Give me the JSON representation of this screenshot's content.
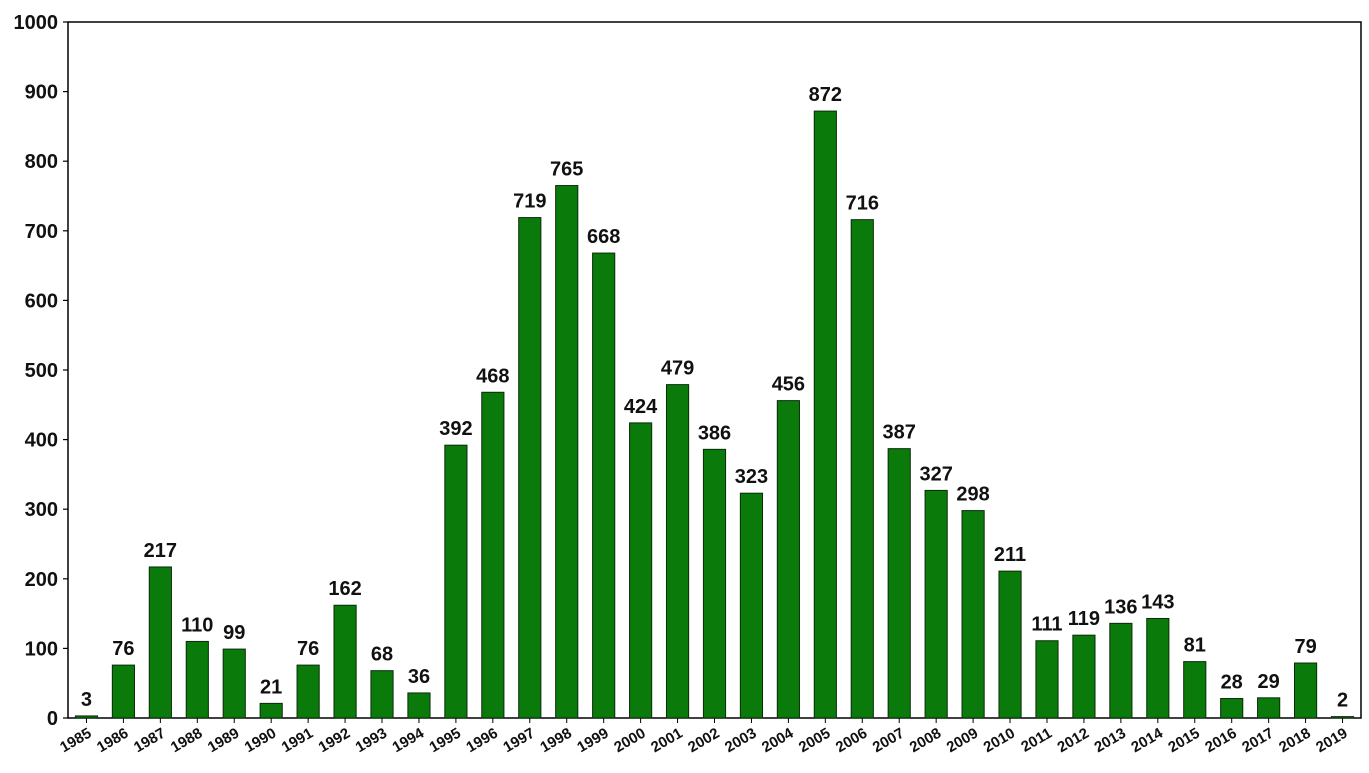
{
  "chart_data": {
    "type": "bar",
    "categories": [
      "1985",
      "1986",
      "1987",
      "1988",
      "1989",
      "1990",
      "1991",
      "1992",
      "1993",
      "1994",
      "1995",
      "1996",
      "1997",
      "1998",
      "1999",
      "2000",
      "2001",
      "2002",
      "2003",
      "2004",
      "2005",
      "2006",
      "2007",
      "2008",
      "2009",
      "2010",
      "2011",
      "2012",
      "2013",
      "2014",
      "2015",
      "2016",
      "2017",
      "2018",
      "2019"
    ],
    "values": [
      3,
      76,
      217,
      110,
      99,
      21,
      76,
      162,
      68,
      36,
      392,
      468,
      719,
      765,
      668,
      424,
      479,
      386,
      323,
      456,
      872,
      716,
      387,
      327,
      298,
      211,
      111,
      119,
      136,
      143,
      81,
      28,
      29,
      79,
      2
    ],
    "title": "",
    "xlabel": "",
    "ylabel": "",
    "ylim": [
      0,
      1000
    ],
    "yticks": [
      0,
      100,
      200,
      300,
      400,
      500,
      600,
      700,
      800,
      900,
      1000
    ],
    "grid": false,
    "legend": "none",
    "bar_color": "#0a7a0a",
    "bar_edge_color": "#0b2b0b"
  }
}
